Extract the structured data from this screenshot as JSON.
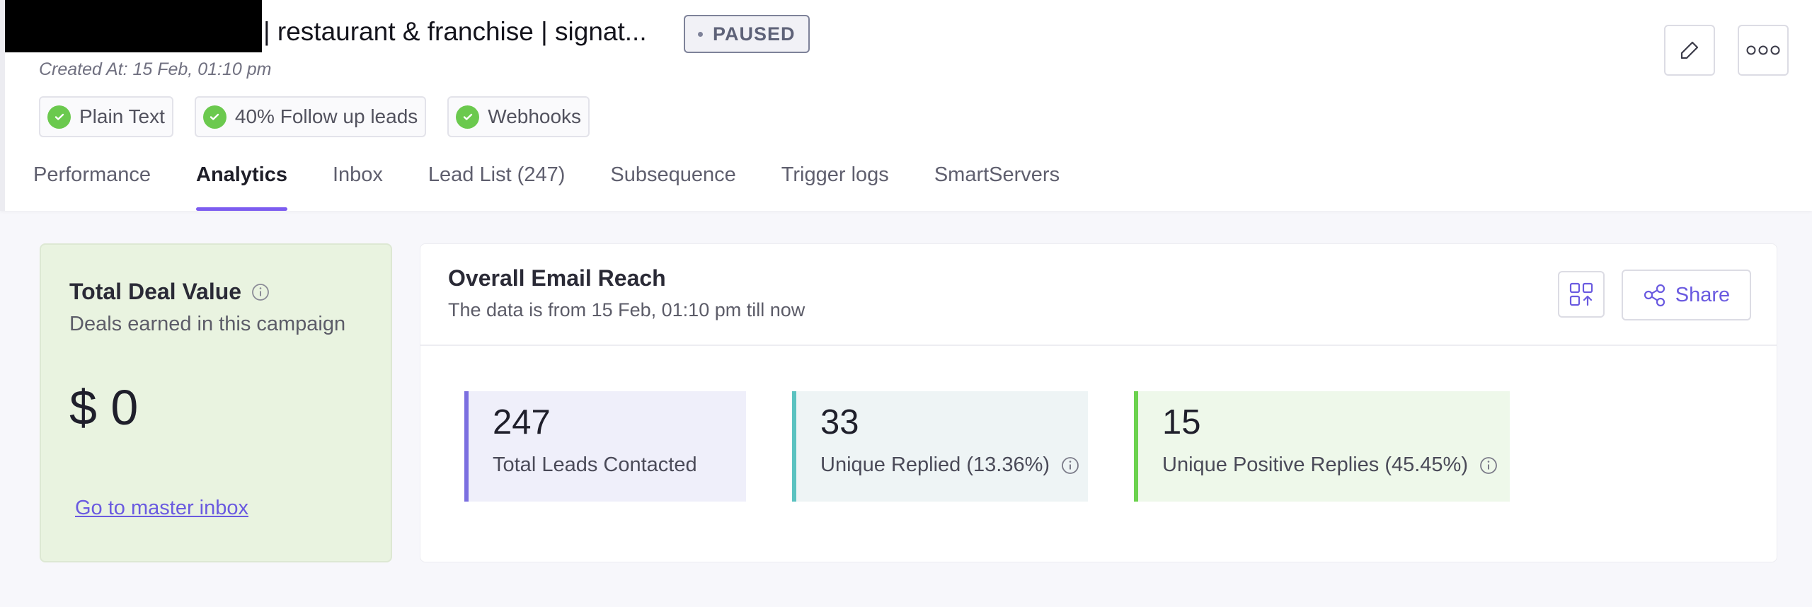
{
  "campaign": {
    "title": "| restaurant & franchise | signat...",
    "status": "PAUSED",
    "created_at": "Created At: 15 Feb, 01:10 pm",
    "chips": [
      {
        "label": "Plain Text"
      },
      {
        "label": "40% Follow up leads"
      },
      {
        "label": "Webhooks"
      }
    ]
  },
  "tabs": [
    {
      "label": "Performance"
    },
    {
      "label": "Analytics",
      "active": true
    },
    {
      "label": "Inbox"
    },
    {
      "label": "Lead List (247)"
    },
    {
      "label": "Subsequence"
    },
    {
      "label": "Trigger logs"
    },
    {
      "label": "SmartServers"
    }
  ],
  "deal_card": {
    "title": "Total Deal Value",
    "subtitle": "Deals earned in this campaign",
    "value": "$ 0",
    "link": "Go to master inbox"
  },
  "reach_card": {
    "title": "Overall Email Reach",
    "subtitle": "The data is from 15 Feb, 01:10 pm till now",
    "share_label": "Share",
    "stats": [
      {
        "value": "247",
        "label": "Total Leads Contacted"
      },
      {
        "value": "33",
        "label": "Unique Replied (13.36%)"
      },
      {
        "value": "15",
        "label": "Unique Positive Replies (45.45%)"
      }
    ]
  },
  "colors": {
    "accent": "#7c5cf0",
    "link": "#6a5ae0",
    "success": "#6bc94e",
    "deal_card_bg": "#e9f3e0"
  },
  "icons": [
    "check-icon",
    "edit-icon",
    "more-icon",
    "info-icon",
    "layout-icon",
    "share-icon"
  ]
}
